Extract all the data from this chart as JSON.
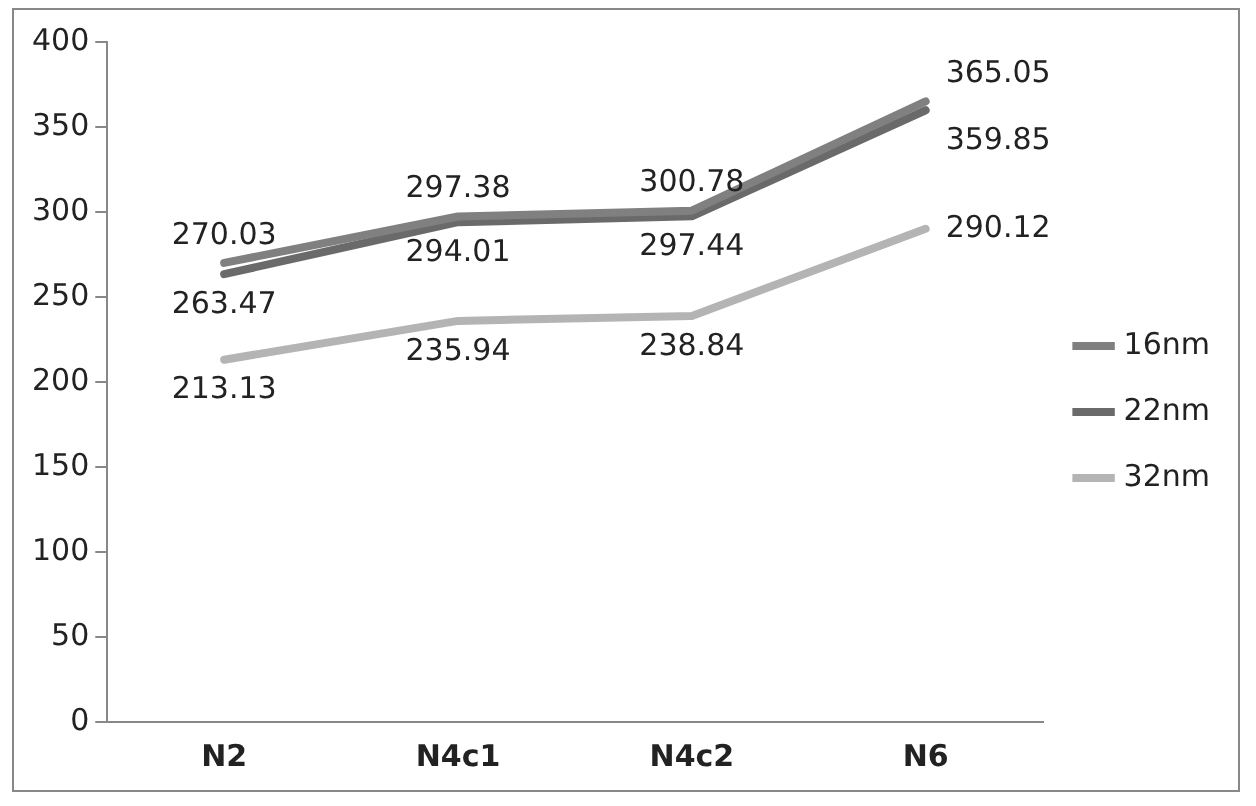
{
  "chart_data": {
    "type": "line",
    "categories": [
      "N2",
      "N4c1",
      "N4c2",
      "N6"
    ],
    "series": [
      {
        "name": "16nm",
        "color": "#808080",
        "values": [
          270.03,
          297.38,
          300.78,
          365.05
        ]
      },
      {
        "name": "22nm",
        "color": "#6a6a6a",
        "values": [
          263.47,
          294.01,
          297.44,
          359.85
        ]
      },
      {
        "name": "32nm",
        "color": "#b4b4b4",
        "values": [
          213.13,
          235.94,
          238.84,
          290.12
        ]
      }
    ],
    "ylim": [
      0,
      400
    ],
    "yticks": [
      0,
      50,
      100,
      150,
      200,
      250,
      300,
      350,
      400
    ],
    "grid": false,
    "legend": "right",
    "data_labels": true,
    "marker": "none",
    "line_style": "solid"
  }
}
